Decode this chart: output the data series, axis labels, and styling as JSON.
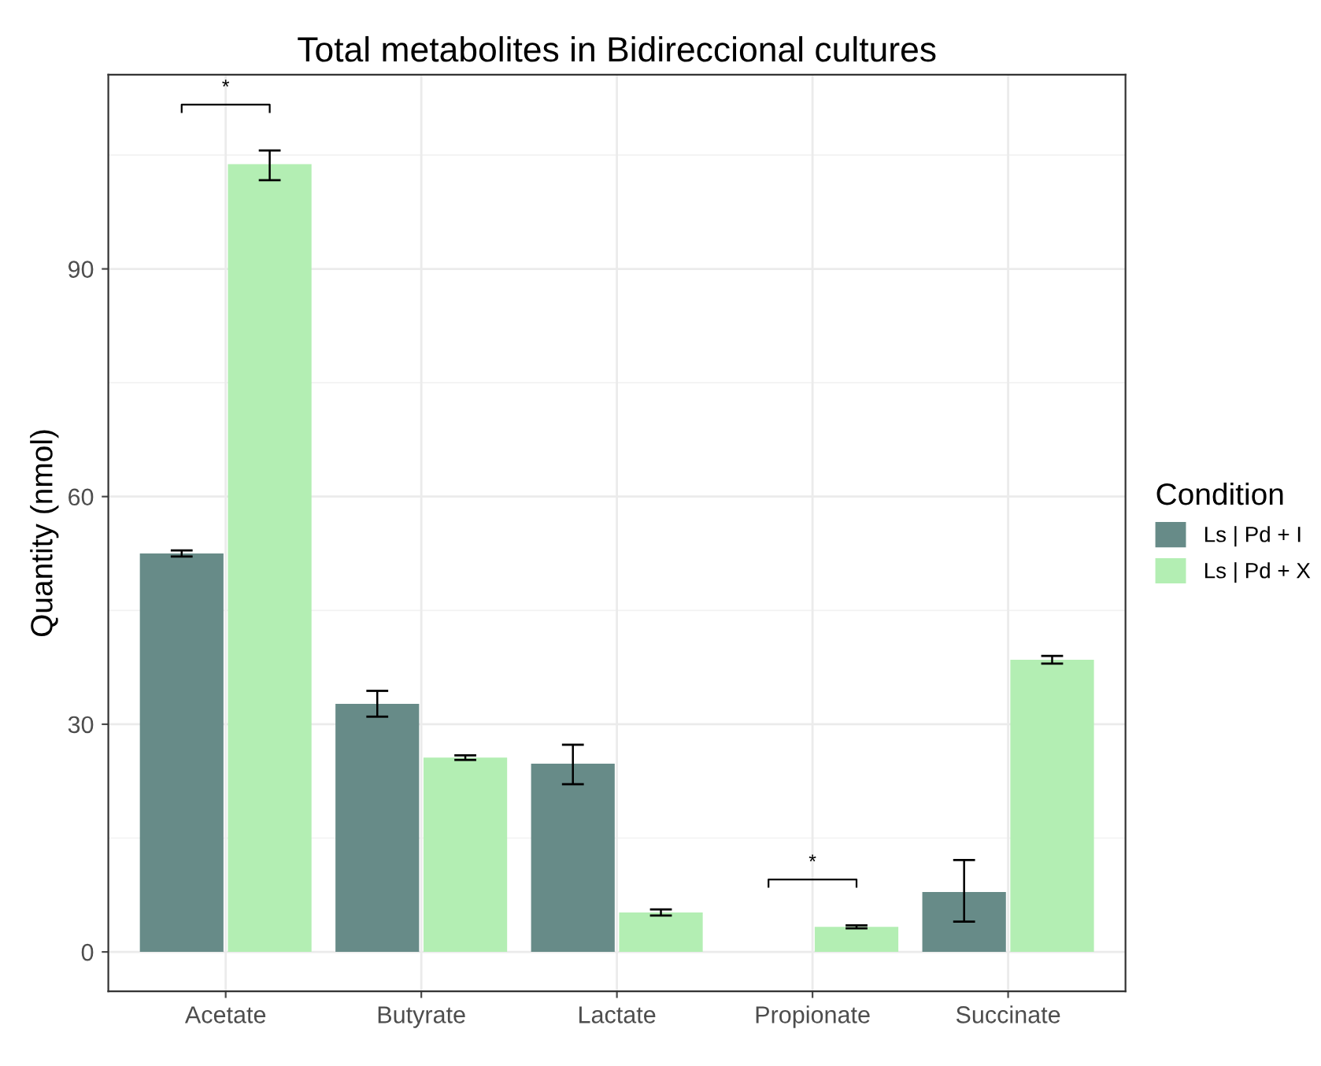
{
  "chart_data": {
    "type": "bar",
    "title": "Total metabolites in Bidireccional cultures",
    "ylabel": "Quantity (nmol)",
    "legend_title": "Condition",
    "categories": [
      "Acetate",
      "Butyrate",
      "Lactate",
      "Propionate",
      "Succinate"
    ],
    "series": [
      {
        "name": "Ls | Pd + I",
        "color": "#678b88",
        "values": [
          52.5,
          32.7,
          24.8,
          0,
          7.9
        ],
        "errors": [
          [
            52.1,
            52.9
          ],
          [
            31.0,
            34.4
          ],
          [
            22.1,
            27.3
          ],
          null,
          [
            4.0,
            12.1
          ]
        ]
      },
      {
        "name": "Ls | Pd + X",
        "color": "#b3eeb3",
        "values": [
          103.8,
          25.6,
          5.2,
          3.3,
          38.5
        ],
        "errors": [
          [
            101.7,
            105.6
          ],
          [
            25.3,
            25.9
          ],
          [
            4.8,
            5.6
          ],
          [
            3.1,
            3.5
          ],
          [
            38.0,
            39.0
          ]
        ]
      }
    ],
    "annotations": [
      "*",
      "*"
    ],
    "ylim": [
      -5.2,
      115.6
    ],
    "yticks": [
      0,
      30,
      60,
      90
    ],
    "grid": true,
    "legend": "right"
  }
}
